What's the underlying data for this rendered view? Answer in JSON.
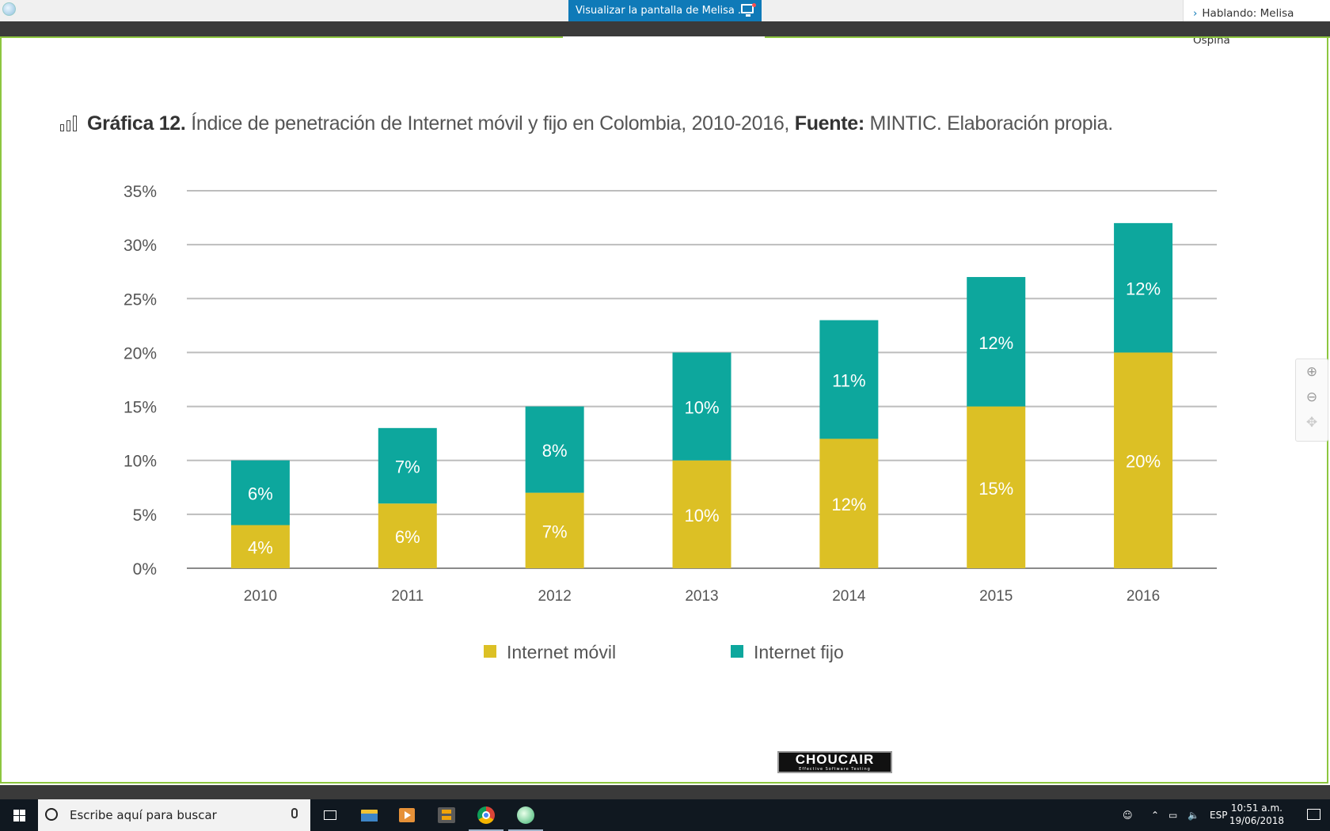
{
  "top_bar": {
    "share_label": "Visualizar la pantalla de Melisa ...",
    "speaking_label": "Hablando: Melisa Ospina"
  },
  "slide": {
    "title_bold": "Gráfica 12.",
    "title_text": " Índice de penetración de Internet móvil y fijo en Colombia, 2010-2016, ",
    "source_bold": "Fuente:",
    "source_text": " MINTIC. Elaboración propia.",
    "logo_main": "CHOUCAIR",
    "logo_sub": "Effective Software Testing"
  },
  "chart_data": {
    "type": "bar",
    "stacked": true,
    "categories": [
      "2010",
      "2011",
      "2012",
      "2013",
      "2014",
      "2015",
      "2016"
    ],
    "series": [
      {
        "name": "Internet móvil",
        "color": "#dcc025",
        "values": [
          4,
          6,
          7,
          10,
          12,
          15,
          20
        ],
        "labels": [
          "4%",
          "6%",
          "7%",
          "10%",
          "12%",
          "15%",
          "20%"
        ]
      },
      {
        "name": "Internet fijo",
        "color": "#0da79d",
        "values": [
          6,
          7,
          8,
          10,
          11,
          12,
          12
        ],
        "labels": [
          "6%",
          "7%",
          "8%",
          "10%",
          "11%",
          "12%",
          "12%"
        ]
      }
    ],
    "y_ticks": [
      "0%",
      "5%",
      "10%",
      "15%",
      "20%",
      "25%",
      "30%",
      "35%"
    ],
    "ylim": [
      0,
      35
    ],
    "grid": true,
    "legend_position": "bottom"
  },
  "zoom_controls": {
    "zoom_in": "⊕",
    "zoom_out": "⊖",
    "move": "✥"
  },
  "taskbar": {
    "search_placeholder": "Escribe aquí para buscar",
    "language": "ESP",
    "time": "10:51 a.m.",
    "date": "19/06/2018"
  }
}
